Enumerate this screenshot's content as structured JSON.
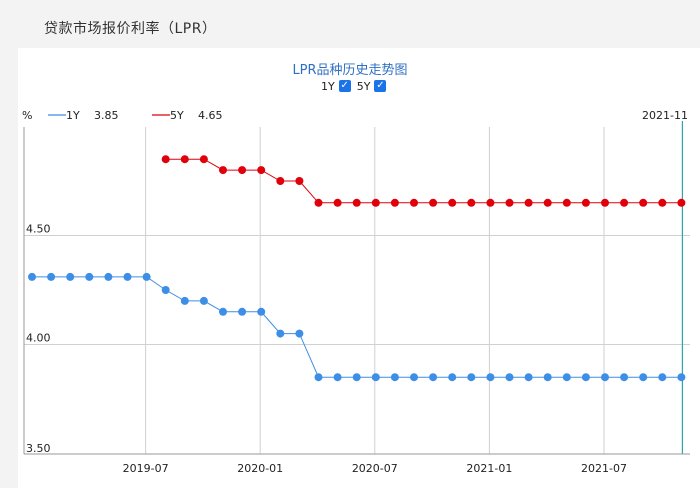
{
  "page": {
    "title": "贷款市场报价利率（LPR）"
  },
  "chart": {
    "title": "LPR品种历史走势图",
    "toggles": [
      {
        "label": "1Y",
        "checked": true
      },
      {
        "label": "5Y",
        "checked": true
      }
    ],
    "unit": "%",
    "cursor_label": "2021-11"
  },
  "colors": {
    "series_1y": "#3d8ee6",
    "series_5y": "#e0000b",
    "cursor": "#2aa7b0",
    "grid": "#d0d0d0",
    "title": "#2f6fc4"
  },
  "chart_data": {
    "type": "line",
    "title": "LPR品种历史走势图",
    "ylabel": "%",
    "ylim": [
      3.5,
      4.8
    ],
    "yticks": [
      3.5,
      4.0,
      4.5
    ],
    "yticklabels": [
      "3.50",
      "4.00",
      "4.50"
    ],
    "xticklabels": [
      "2019-07",
      "2020-01",
      "2020-07",
      "2021-01",
      "2021-07"
    ],
    "grid": true,
    "legend_position": "top-left",
    "x": [
      "2019-01",
      "2019-02",
      "2019-03",
      "2019-04",
      "2019-05",
      "2019-06",
      "2019-07",
      "2019-08",
      "2019-09",
      "2019-10",
      "2019-11",
      "2019-12",
      "2020-01",
      "2020-02",
      "2020-03",
      "2020-04",
      "2020-05",
      "2020-06",
      "2020-07",
      "2020-08",
      "2020-09",
      "2020-10",
      "2020-11",
      "2020-12",
      "2021-01",
      "2021-02",
      "2021-03",
      "2021-04",
      "2021-05",
      "2021-06",
      "2021-07",
      "2021-08",
      "2021-09",
      "2021-10",
      "2021-11"
    ],
    "series": [
      {
        "name": "1Y",
        "legend_value": "3.85",
        "values": [
          4.31,
          4.31,
          4.31,
          4.31,
          4.31,
          4.31,
          4.31,
          4.25,
          4.2,
          4.2,
          4.15,
          4.15,
          4.15,
          4.05,
          4.05,
          3.85,
          3.85,
          3.85,
          3.85,
          3.85,
          3.85,
          3.85,
          3.85,
          3.85,
          3.85,
          3.85,
          3.85,
          3.85,
          3.85,
          3.85,
          3.85,
          3.85,
          3.85,
          3.85,
          3.85
        ]
      },
      {
        "name": "5Y",
        "legend_value": "4.65",
        "values": [
          null,
          null,
          null,
          null,
          null,
          null,
          null,
          4.85,
          4.85,
          4.85,
          4.8,
          4.8,
          4.8,
          4.75,
          4.75,
          4.65,
          4.65,
          4.65,
          4.65,
          4.65,
          4.65,
          4.65,
          4.65,
          4.65,
          4.65,
          4.65,
          4.65,
          4.65,
          4.65,
          4.65,
          4.65,
          4.65,
          4.65,
          4.65,
          4.65
        ]
      }
    ]
  }
}
